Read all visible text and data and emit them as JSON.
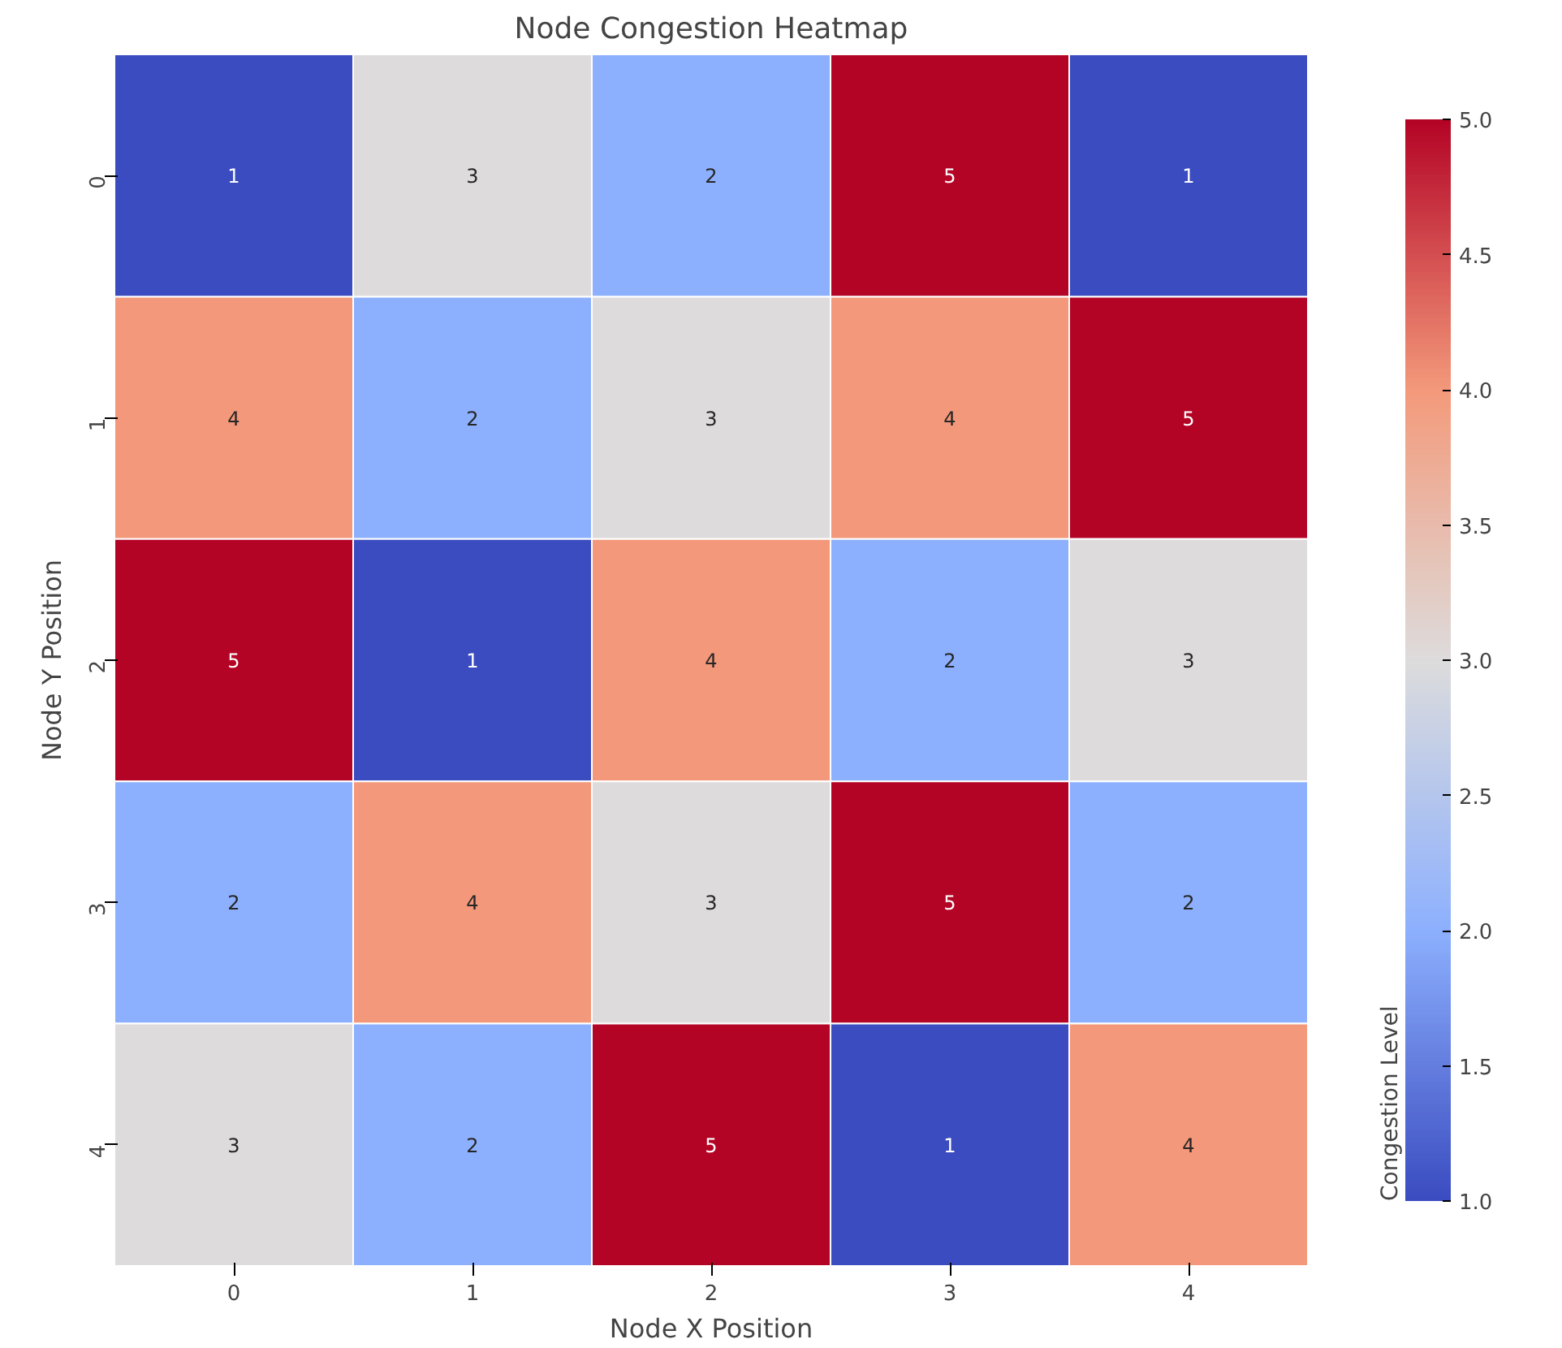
{
  "chart_data": {
    "type": "heatmap",
    "title": "Node Congestion Heatmap",
    "xlabel": "Node X Position",
    "ylabel": "Node Y Position",
    "clabel": "Congestion Level",
    "categories": [
      "0",
      "1",
      "2",
      "3",
      "4"
    ],
    "y_categories": [
      "0",
      "1",
      "2",
      "3",
      "4"
    ],
    "cells": [
      [
        1,
        3,
        2,
        5,
        1
      ],
      [
        4,
        2,
        3,
        4,
        5
      ],
      [
        5,
        1,
        4,
        2,
        3
      ],
      [
        2,
        4,
        3,
        5,
        2
      ],
      [
        3,
        2,
        5,
        1,
        4
      ]
    ],
    "clim": [
      1,
      5
    ],
    "cticks": [
      {
        "value": 1,
        "label": "1.0"
      },
      {
        "value": 1.5,
        "label": "1.5"
      },
      {
        "value": 2,
        "label": "2.0"
      },
      {
        "value": 2.5,
        "label": "2.5"
      },
      {
        "value": 3,
        "label": "3.0"
      },
      {
        "value": 3.5,
        "label": "3.5"
      },
      {
        "value": 4,
        "label": "4.0"
      },
      {
        "value": 4.5,
        "label": "4.5"
      },
      {
        "value": 5,
        "label": "5.0"
      }
    ],
    "data_labels": true
  }
}
